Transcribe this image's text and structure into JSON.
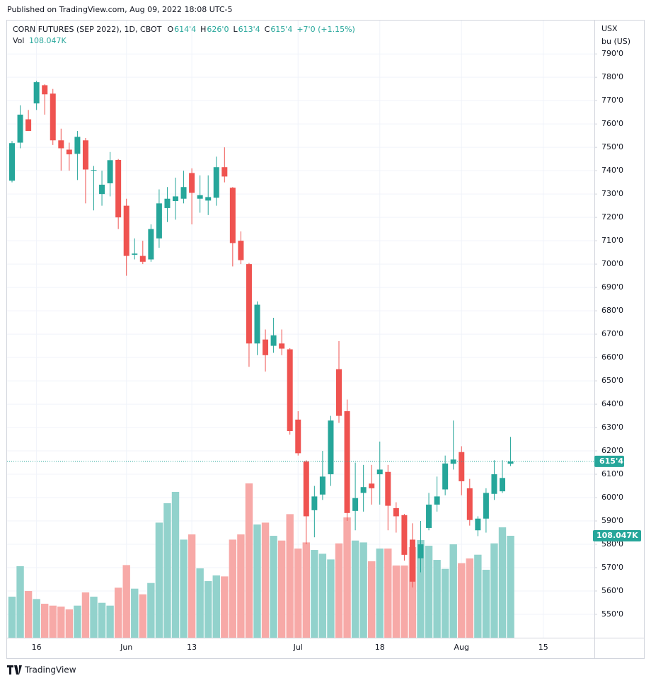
{
  "published": "Published on TradingView.com, Aug 09, 2022 18:08 UTC-5",
  "footer": "TradingView",
  "chart_data": {
    "type": "candlestick",
    "title": "CORN FUTURES (SEP 2022), 1D, CBOT",
    "ohlc_header": [
      {
        "key": "O",
        "value": "614'4"
      },
      {
        "key": "H",
        "value": "626'0"
      },
      {
        "key": "L",
        "value": "613'4"
      },
      {
        "key": "C",
        "value": "615'4"
      }
    ],
    "change": "+7'0 (+1.15%)",
    "volume_title": "Vol",
    "volume_last_label": "108.047K",
    "unit_currency": "USX",
    "unit": "bu (US)",
    "up_color": "#26a69a",
    "down_color": "#ef5350",
    "volume_up_color": "#92d2cc",
    "volume_down_color": "#f7a9a7",
    "grid": true,
    "last_price": {
      "value": 615.5,
      "label": "615'4"
    },
    "categories": [
      null,
      null,
      null,
      "16",
      null,
      null,
      null,
      null,
      null,
      null,
      null,
      null,
      null,
      null,
      "Jun",
      null,
      null,
      null,
      null,
      null,
      null,
      null,
      "13",
      null,
      null,
      null,
      null,
      null,
      null,
      null,
      null,
      null,
      null,
      null,
      null,
      "Jul",
      null,
      null,
      null,
      null,
      null,
      null,
      null,
      null,
      null,
      "18",
      null,
      null,
      null,
      null,
      null,
      null,
      null,
      null,
      null,
      "Aug",
      null,
      null,
      null,
      null,
      null,
      null,
      null,
      null,
      null,
      "15"
    ],
    "open": [
      735.7,
      752,
      762,
      768.8,
      776.6,
      773,
      753,
      749,
      747.2,
      753,
      740,
      730,
      734.6,
      744.6,
      725,
      704,
      703.5,
      702,
      711,
      724,
      727,
      728,
      739,
      728,
      727.2,
      728.4,
      741.5,
      732.7,
      710,
      700,
      666,
      667.7,
      665,
      666,
      663.5,
      633.4,
      615.5,
      594.6,
      601.3,
      610,
      655,
      637,
      594.3,
      602,
      606,
      610,
      611,
      595.5,
      592.5,
      582,
      574,
      587,
      597,
      603.5,
      614.5,
      619.5,
      604,
      586,
      591,
      601.6,
      602.7,
      614.5,
      null,
      null,
      null,
      null
    ],
    "high": [
      752.7,
      768,
      766,
      778.5,
      777,
      775,
      758,
      752,
      757,
      754,
      742,
      740,
      748,
      745,
      728,
      711,
      710,
      717,
      732,
      733,
      737,
      740,
      741,
      738,
      738,
      746,
      750,
      733,
      714,
      700.5,
      684,
      672,
      677,
      672,
      664,
      637,
      616,
      605,
      620,
      635,
      667,
      642,
      615,
      614,
      614,
      624,
      614,
      598,
      593,
      589,
      590,
      602,
      609,
      618,
      633,
      622,
      608,
      592,
      604,
      616,
      616,
      626,
      null,
      null,
      null,
      null
    ],
    "low": [
      735,
      749.6,
      757,
      766,
      764,
      751,
      740,
      740,
      736,
      726,
      723,
      725,
      729,
      715,
      695,
      702,
      700,
      701,
      707,
      718,
      719,
      726,
      717,
      722,
      721,
      725,
      735,
      699,
      700,
      656,
      661,
      654,
      662,
      661,
      627,
      618,
      580,
      583,
      599,
      605,
      632,
      590,
      586,
      594,
      597,
      597,
      586,
      585,
      573,
      561.5,
      568,
      586,
      594,
      601,
      612,
      601,
      588,
      583.5,
      585,
      599,
      602,
      613.5,
      null,
      null,
      null,
      null
    ],
    "close": [
      751.8,
      764,
      757,
      777.9,
      772.7,
      753,
      749.6,
      747,
      754.5,
      740.5,
      740.3,
      734,
      744.5,
      720,
      703.5,
      704.5,
      701,
      715,
      726,
      728,
      729,
      733,
      730.5,
      729.5,
      728.7,
      741.5,
      737.5,
      709,
      701.7,
      666,
      682.6,
      661,
      669.5,
      663.8,
      628.5,
      619,
      592,
      600.5,
      609,
      633,
      635,
      593.4,
      599.8,
      604.5,
      604,
      612,
      596.5,
      592,
      575.5,
      564,
      580,
      597,
      600.5,
      614.6,
      616.3,
      607,
      590.4,
      591,
      602,
      610,
      608.4,
      615.5,
      null,
      null,
      null,
      null
    ],
    "volume": [
      43500,
      75800,
      49500,
      41000,
      36000,
      34000,
      33000,
      30000,
      34000,
      48000,
      43500,
      37000,
      34000,
      53000,
      77000,
      52000,
      46000,
      58000,
      122000,
      142600,
      154600,
      104000,
      109500,
      73500,
      60000,
      66000,
      65000,
      104000,
      109500,
      163600,
      120000,
      122000,
      108000,
      103000,
      131000,
      94500,
      101000,
      93000,
      89000,
      83000,
      100000,
      127500,
      103000,
      101000,
      81000,
      94500,
      94500,
      76500,
      76500,
      96000,
      103500,
      97500,
      82500,
      73000,
      99000,
      79000,
      84000,
      88000,
      72000,
      100000,
      117000,
      108047,
      null,
      null,
      null,
      null
    ],
    "ylim": [
      540,
      804
    ],
    "yticks": [
      {
        "value": 790,
        "label": "790'0"
      },
      {
        "value": 780,
        "label": "780'0"
      },
      {
        "value": 770,
        "label": "770'0"
      },
      {
        "value": 760,
        "label": "760'0"
      },
      {
        "value": 750,
        "label": "750'0"
      },
      {
        "value": 740,
        "label": "740'0"
      },
      {
        "value": 730,
        "label": "730'0"
      },
      {
        "value": 720,
        "label": "720'0"
      },
      {
        "value": 710,
        "label": "710'0"
      },
      {
        "value": 700,
        "label": "700'0"
      },
      {
        "value": 690,
        "label": "690'0"
      },
      {
        "value": 680,
        "label": "680'0"
      },
      {
        "value": 670,
        "label": "670'0"
      },
      {
        "value": 660,
        "label": "660'0"
      },
      {
        "value": 650,
        "label": "650'0"
      },
      {
        "value": 640,
        "label": "640'0"
      },
      {
        "value": 630,
        "label": "630'0"
      },
      {
        "value": 620,
        "label": "620'0"
      },
      {
        "value": 610,
        "label": "610'0"
      },
      {
        "value": 600,
        "label": "600'0"
      },
      {
        "value": 590,
        "label": "590'0"
      },
      {
        "value": 580,
        "label": "580'0"
      },
      {
        "value": 570,
        "label": "570'0"
      },
      {
        "value": 560,
        "label": "560'0"
      },
      {
        "value": 550,
        "label": "550'0"
      }
    ]
  }
}
